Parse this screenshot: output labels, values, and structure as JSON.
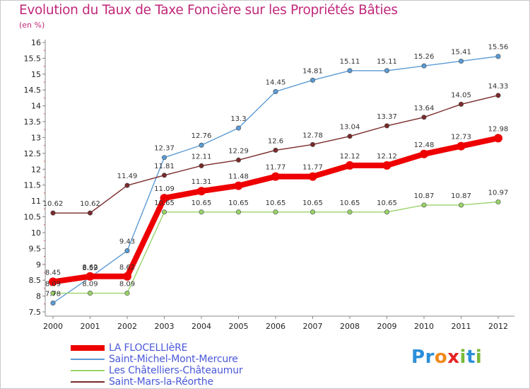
{
  "title": "Evolution du Taux de Taxe Foncière sur les Propriétés Bâties",
  "unit_label": "(en %)",
  "logo": {
    "letters": [
      "P",
      "r",
      "o",
      "x",
      "i",
      "t",
      "i"
    ],
    "colors": [
      "#2b8fd9",
      "#2b8fd9",
      "#f08a1c",
      "#e62222",
      "#7ab83a",
      "#2b8fd9",
      "#7ab83a"
    ]
  },
  "chart_data": {
    "type": "line",
    "title": "Evolution du Taux de Taxe Foncière sur les Propriétés Bâties",
    "ylabel": "(en %)",
    "xlabel": "",
    "x": [
      "2000",
      "2001",
      "2002",
      "2003",
      "2004",
      "2005",
      "2006",
      "2007",
      "2008",
      "2009",
      "2010",
      "2011",
      "2012"
    ],
    "ylim": [
      7.5,
      16
    ],
    "yticks": [
      "7.5",
      "8",
      "8.5",
      "9",
      "9.5",
      "10",
      "10.5",
      "11",
      "11.5",
      "12",
      "12.5",
      "13",
      "13.5",
      "14",
      "14.5",
      "15",
      "15.5",
      "16"
    ],
    "grid": false,
    "legend_position": "bottom-left",
    "series": [
      {
        "name": "LA FLOCELLIèRE",
        "color": "#ee0000",
        "values": [
          8.45,
          8.62,
          8.62,
          11.09,
          11.31,
          11.48,
          11.77,
          11.77,
          12.12,
          12.12,
          12.48,
          12.73,
          12.98
        ],
        "labels": [
          "8.45",
          "8.62",
          "8.62",
          "11.09",
          "11.31",
          "11.48",
          "11.77",
          "11.77",
          "12.12",
          "12.12",
          "12.48",
          "12.73",
          "12.98"
        ]
      },
      {
        "name": "Saint-Michel-Mont-Mercure",
        "color": "#5b9bd5",
        "values": [
          7.78,
          8.59,
          9.43,
          12.37,
          12.76,
          13.3,
          14.45,
          14.81,
          15.11,
          15.11,
          15.26,
          15.41,
          15.56
        ],
        "labels": [
          "7.78",
          "8.59",
          "9.43",
          "12.37",
          "12.76",
          "13.3",
          "14.45",
          "14.81",
          "15.11",
          "15.11",
          "15.26",
          "15.41",
          "15.56"
        ]
      },
      {
        "name": "Les Châtelliers-Châteaumur",
        "color": "#9ad36a",
        "values": [
          8.09,
          8.09,
          8.09,
          10.65,
          10.65,
          10.65,
          10.65,
          10.65,
          10.65,
          10.65,
          10.87,
          10.87,
          10.97
        ],
        "labels": [
          "8.09",
          "8.09",
          "8.09",
          "10.65",
          "10.65",
          "10.65",
          "10.65",
          "10.65",
          "10.65",
          "10.65",
          "10.87",
          "10.87",
          "10.97"
        ]
      },
      {
        "name": "Saint-Mars-la-Réorthe",
        "color": "#7a2a2a",
        "values": [
          10.62,
          10.62,
          11.49,
          11.81,
          12.11,
          12.29,
          12.6,
          12.78,
          13.04,
          13.37,
          13.64,
          14.05,
          14.33
        ],
        "labels": [
          "10.62",
          "10.62",
          "11.49",
          "11.81",
          "12.11",
          "12.29",
          "12.6",
          "12.78",
          "13.04",
          "13.37",
          "13.64",
          "14.05",
          "14.33"
        ]
      }
    ]
  }
}
